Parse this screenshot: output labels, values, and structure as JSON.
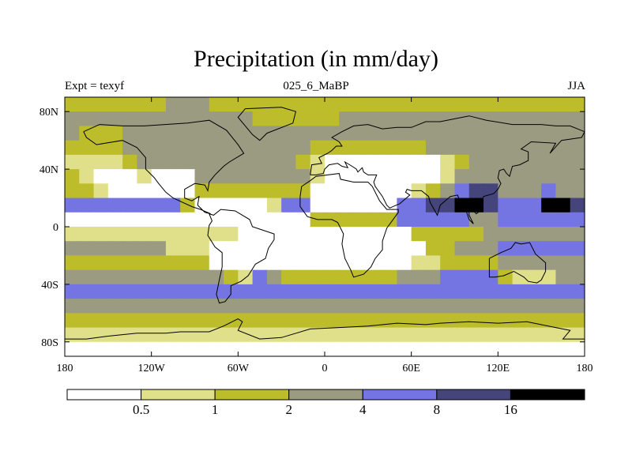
{
  "header": {
    "title": "Precipitation (in mm/day)",
    "left_label": "Expt = texyf",
    "center_label": "025_6_MaBP",
    "right_label": "JJA"
  },
  "colors": {
    "levels": [
      "#ffffff",
      "#e0e08a",
      "#bdbd2c",
      "#9b9b82",
      "#7474e2",
      "#45457c",
      "#000000"
    ],
    "coast": "#000000"
  },
  "chart_data": {
    "type": "heatmap",
    "title": "Precipitation (in mm/day)",
    "subtitle_left": "Expt = texyf",
    "subtitle_center": "025_6_MaBP",
    "subtitle_right": "JJA",
    "xlabel": "",
    "ylabel": "",
    "x_range": [
      -180,
      180
    ],
    "y_range": [
      -90,
      90
    ],
    "x_ticks": [
      {
        "value": -180,
        "label": "180"
      },
      {
        "value": -120,
        "label": "120W"
      },
      {
        "value": -60,
        "label": "60W"
      },
      {
        "value": 0,
        "label": "0"
      },
      {
        "value": 60,
        "label": "60E"
      },
      {
        "value": 120,
        "label": "120E"
      },
      {
        "value": 180,
        "label": "180"
      }
    ],
    "y_ticks": [
      {
        "value": 80,
        "label": "80N"
      },
      {
        "value": 40,
        "label": "40N"
      },
      {
        "value": 0,
        "label": "0"
      },
      {
        "value": -40,
        "label": "40S"
      },
      {
        "value": -80,
        "label": "80S"
      }
    ],
    "colorbar": {
      "thresholds": [
        0.5,
        1,
        2,
        4,
        8,
        16
      ],
      "tick_labels": [
        "0.5",
        "1",
        "2",
        "4",
        "8",
        "16"
      ]
    },
    "grid_lon_step": 10,
    "grid_lat_step": 10,
    "lats": [
      85,
      75,
      65,
      55,
      45,
      35,
      25,
      15,
      5,
      -5,
      -15,
      -25,
      -35,
      -45,
      -55,
      -65,
      -75,
      -85
    ],
    "values": [
      [
        1.5,
        1.5,
        1.5,
        1.5,
        1.5,
        1.5,
        1.5,
        2.5,
        2.5,
        2.5,
        1.5,
        1.5,
        1.5,
        1.5,
        1.5,
        1.5,
        1.5,
        1.5,
        1.5,
        1.5,
        1.5,
        1.5,
        1.5,
        1.5,
        1.5,
        1.5,
        1.5,
        1.5,
        1.5,
        1.5,
        1.5,
        1.5,
        1.5,
        1.5,
        1.5,
        1.5
      ],
      [
        2.5,
        2.5,
        2.5,
        2.5,
        2.5,
        2.5,
        2.5,
        2.5,
        2.5,
        3,
        2.5,
        2.5,
        2.5,
        1.5,
        1.5,
        1.5,
        1.5,
        1.5,
        1.5,
        2.5,
        2.5,
        2.5,
        2.5,
        2.5,
        2.5,
        2.5,
        2.5,
        2.5,
        2.5,
        2.5,
        2.5,
        2.5,
        2.5,
        2.5,
        2.5,
        2.5
      ],
      [
        2.5,
        1.5,
        1.5,
        1.5,
        2.5,
        3,
        3,
        3,
        3,
        3,
        3,
        3,
        3,
        3,
        3,
        3,
        2.5,
        2.5,
        2.5,
        2.5,
        2.5,
        2.5,
        2.5,
        2.5,
        2.5,
        2.5,
        2.5,
        2.5,
        2.5,
        2.5,
        3,
        3,
        3,
        3,
        2.5,
        2.5
      ],
      [
        1.5,
        1.5,
        1.5,
        1.5,
        2.5,
        3,
        3,
        3,
        3,
        3,
        3,
        3,
        3,
        3,
        2.5,
        2.5,
        2.5,
        1.5,
        1.5,
        1.5,
        1.5,
        1.5,
        1.5,
        1.5,
        1.5,
        2.5,
        2.5,
        3,
        3,
        3,
        3,
        3,
        3,
        3,
        3,
        3
      ],
      [
        0.75,
        0.75,
        0.75,
        0.75,
        1.5,
        3,
        3,
        3,
        3,
        3,
        3,
        3,
        3,
        3,
        3,
        3,
        1.5,
        0.75,
        0.3,
        0.3,
        0.3,
        0.3,
        0.3,
        0.3,
        0.3,
        0.3,
        0.75,
        1.5,
        2.5,
        3,
        3,
        3,
        3,
        3,
        3,
        3
      ],
      [
        1.5,
        0.75,
        0.3,
        0.3,
        0.3,
        0.75,
        0.3,
        0.3,
        0.3,
        3,
        3,
        3,
        3,
        3,
        3,
        3,
        3,
        0.75,
        0.3,
        0.3,
        0.3,
        0.3,
        0.3,
        0.3,
        0.3,
        0.3,
        0.75,
        2.5,
        3,
        3,
        3,
        3,
        3,
        3,
        3,
        3
      ],
      [
        1.5,
        1.5,
        0.75,
        0.3,
        0.3,
        0.3,
        0.3,
        0.3,
        0.3,
        1.5,
        1.5,
        1.5,
        1.5,
        1.5,
        1.5,
        1.5,
        1.5,
        0.3,
        0.3,
        0.3,
        0.3,
        0.3,
        0.3,
        0.3,
        0.75,
        1.5,
        3,
        6,
        12,
        12,
        3,
        3,
        3,
        6,
        3,
        3
      ],
      [
        6,
        6,
        6,
        6,
        6,
        6,
        6,
        6,
        1.5,
        0.3,
        0.3,
        0.3,
        0.3,
        0.3,
        0.75,
        6,
        6,
        0.3,
        0.3,
        0.3,
        0.3,
        0.3,
        0.3,
        6,
        6,
        12,
        12,
        20,
        20,
        12,
        6,
        6,
        6,
        20,
        20,
        12
      ],
      [
        0.3,
        0.3,
        0.3,
        0.3,
        0.3,
        0.3,
        0.3,
        0.3,
        0.3,
        0.3,
        0.3,
        0.3,
        0.3,
        0.3,
        0.3,
        0.3,
        0.3,
        1.5,
        1.5,
        1.5,
        1.5,
        1.5,
        1.5,
        6,
        6,
        6,
        6,
        6,
        3,
        3,
        6,
        6,
        6,
        6,
        6,
        6
      ],
      [
        0.75,
        0.75,
        0.75,
        0.75,
        0.75,
        0.75,
        0.75,
        0.75,
        0.75,
        0.75,
        0.75,
        0.75,
        0.3,
        0.3,
        0.3,
        0.3,
        0.3,
        0.3,
        0.3,
        0.3,
        0.3,
        0.3,
        0.3,
        0.3,
        1.5,
        1.5,
        1.5,
        1.5,
        1.5,
        3,
        3,
        3,
        3,
        3,
        3,
        3
      ],
      [
        3,
        3,
        3,
        3,
        3,
        3,
        3,
        0.75,
        0.75,
        0.75,
        0.3,
        0.3,
        0.3,
        0.3,
        0.3,
        0.3,
        0.3,
        0.3,
        0.3,
        0.3,
        0.3,
        0.3,
        0.3,
        0.3,
        0.3,
        1.5,
        1.5,
        3,
        3,
        3,
        6,
        6,
        6,
        6,
        6,
        6
      ],
      [
        1.5,
        1.5,
        1.5,
        1.5,
        1.5,
        1.5,
        1.5,
        1.5,
        1.5,
        1.5,
        0.3,
        0.3,
        0.3,
        0.3,
        0.3,
        0.3,
        0.3,
        0.3,
        0.3,
        0.3,
        0.3,
        0.3,
        0.3,
        0.3,
        0.75,
        0.75,
        1.5,
        1.5,
        1.5,
        1.5,
        3,
        3,
        3,
        3,
        3,
        3
      ],
      [
        3,
        3,
        3,
        3,
        3,
        3,
        3,
        3,
        3,
        3,
        3,
        1.5,
        0.75,
        6,
        3,
        1.5,
        1.5,
        1.5,
        1.5,
        1.5,
        1.5,
        1.5,
        1.5,
        3,
        3,
        3,
        6,
        6,
        6,
        6,
        1.5,
        0.75,
        0.75,
        0.75,
        3,
        3
      ],
      [
        6,
        6,
        6,
        6,
        6,
        6,
        6,
        6,
        6,
        6,
        6,
        6,
        6,
        6,
        6,
        6,
        6,
        6,
        6,
        6,
        6,
        6,
        6,
        6,
        6,
        6,
        6,
        6,
        6,
        6,
        6,
        6,
        6,
        6,
        6,
        6
      ],
      [
        3,
        3,
        3,
        3,
        3,
        3,
        3,
        3,
        3,
        3,
        3,
        3,
        3,
        3,
        3,
        3,
        3,
        3,
        3,
        3,
        3,
        3,
        3,
        3,
        3,
        3,
        3,
        3,
        3,
        3,
        3,
        3,
        3,
        3,
        3,
        3
      ],
      [
        1.5,
        1.5,
        1.5,
        1.5,
        1.5,
        1.5,
        1.5,
        1.5,
        1.5,
        1.5,
        1.5,
        1.5,
        1.5,
        1.5,
        1.5,
        1.5,
        1.5,
        1.5,
        1.5,
        1.5,
        1.5,
        1.5,
        1.5,
        1.5,
        1.5,
        1.5,
        1.5,
        1.5,
        1.5,
        1.5,
        1.5,
        1.5,
        1.5,
        1.5,
        1.5,
        1.5
      ],
      [
        0.75,
        0.75,
        0.75,
        0.75,
        0.75,
        0.75,
        0.75,
        0.75,
        0.75,
        0.75,
        0.75,
        0.75,
        0.75,
        0.75,
        0.75,
        0.75,
        0.75,
        0.75,
        0.75,
        0.75,
        0.75,
        0.75,
        0.75,
        0.75,
        0.75,
        0.75,
        0.75,
        0.75,
        0.75,
        0.75,
        0.75,
        0.75,
        0.75,
        0.75,
        0.75,
        0.75
      ],
      [
        0.3,
        0.3,
        0.3,
        0.3,
        0.3,
        0.3,
        0.3,
        0.3,
        0.3,
        0.3,
        0.3,
        0.3,
        0.3,
        0.3,
        0.3,
        0.3,
        0.3,
        0.3,
        0.3,
        0.3,
        0.3,
        0.3,
        0.3,
        0.3,
        0.3,
        0.3,
        0.3,
        0.3,
        0.3,
        0.3,
        0.3,
        0.3,
        0.3,
        0.3,
        0.3,
        0.3
      ]
    ]
  }
}
